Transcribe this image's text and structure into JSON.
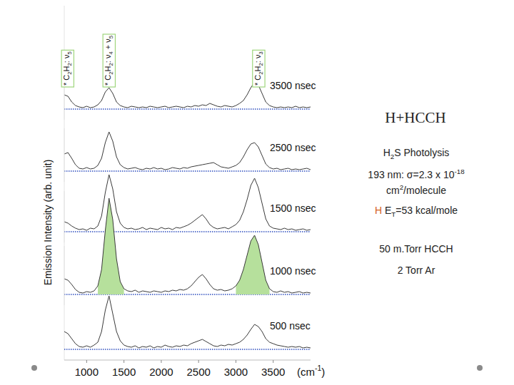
{
  "chart_data": [
    {
      "type": "line",
      "title": "3500 nsec",
      "xlim": [
        700,
        4000
      ],
      "ylim": [
        -15,
        145
      ],
      "tick_labels": false,
      "x": [
        700,
        750,
        800,
        850,
        900,
        950,
        1000,
        1050,
        1100,
        1150,
        1200,
        1250,
        1300,
        1350,
        1400,
        1450,
        1500,
        1550,
        1600,
        1650,
        1700,
        1750,
        1800,
        1850,
        1900,
        1950,
        2000,
        2050,
        2100,
        2150,
        2200,
        2250,
        2300,
        2350,
        2400,
        2450,
        2500,
        2550,
        2600,
        2650,
        2700,
        2750,
        2800,
        2850,
        2900,
        2950,
        3000,
        3050,
        3100,
        3150,
        3200,
        3250,
        3300,
        3350,
        3400,
        3450,
        3500,
        3550,
        3600,
        3650,
        3700,
        3750,
        3800,
        3850,
        3900,
        3950,
        4000
      ],
      "series": [
        {
          "color": "#3a3a3a",
          "values": [
            20,
            18,
            10,
            5,
            3,
            2,
            4,
            2,
            3,
            6,
            12,
            24,
            30,
            22,
            10,
            5,
            3,
            2,
            4,
            3,
            2,
            3,
            2,
            4,
            3,
            2,
            3,
            4,
            2,
            3,
            4,
            3,
            2,
            4,
            3,
            5,
            4,
            6,
            5,
            8,
            6,
            4,
            3,
            5,
            4,
            3,
            5,
            8,
            12,
            20,
            30,
            38,
            34,
            22,
            10,
            5,
            3,
            2,
            3,
            2,
            3,
            2,
            4,
            2,
            3,
            2,
            3
          ]
        }
      ]
    },
    {
      "type": "line",
      "title": "2500 nsec",
      "xlim": [
        700,
        4000
      ],
      "ylim": [
        -15,
        145
      ],
      "tick_labels": false,
      "x": [
        700,
        750,
        800,
        850,
        900,
        950,
        1000,
        1050,
        1100,
        1150,
        1200,
        1250,
        1300,
        1350,
        1400,
        1450,
        1500,
        1550,
        1600,
        1650,
        1700,
        1750,
        1800,
        1850,
        1900,
        1950,
        2000,
        2050,
        2100,
        2150,
        2200,
        2250,
        2300,
        2350,
        2400,
        2450,
        2500,
        2550,
        2600,
        2650,
        2700,
        2750,
        2800,
        2850,
        2900,
        2950,
        3000,
        3050,
        3100,
        3150,
        3200,
        3250,
        3300,
        3350,
        3400,
        3450,
        3500,
        3550,
        3600,
        3650,
        3700,
        3750,
        3800,
        3850,
        3900,
        3950,
        4000
      ],
      "series": [
        {
          "color": "#3a3a3a",
          "values": [
            24,
            26,
            18,
            9,
            4,
            3,
            5,
            3,
            4,
            8,
            18,
            40,
            55,
            42,
            20,
            9,
            5,
            3,
            4,
            5,
            3,
            2,
            4,
            3,
            5,
            3,
            4,
            2,
            3,
            5,
            4,
            3,
            5,
            4,
            6,
            7,
            8,
            9,
            10,
            11,
            12,
            9,
            6,
            5,
            4,
            6,
            8,
            12,
            20,
            30,
            38,
            40,
            34,
            22,
            10,
            5,
            3,
            4,
            2,
            3,
            4,
            2,
            3,
            2,
            3,
            4,
            2
          ]
        }
      ]
    },
    {
      "type": "line",
      "title": "1500 nsec",
      "xlim": [
        700,
        4000
      ],
      "ylim": [
        -15,
        145
      ],
      "tick_labels": false,
      "x": [
        700,
        750,
        800,
        850,
        900,
        950,
        1000,
        1050,
        1100,
        1150,
        1200,
        1250,
        1300,
        1350,
        1400,
        1450,
        1500,
        1550,
        1600,
        1650,
        1700,
        1750,
        1800,
        1850,
        1900,
        1950,
        2000,
        2050,
        2100,
        2150,
        2200,
        2250,
        2300,
        2350,
        2400,
        2450,
        2500,
        2550,
        2600,
        2650,
        2700,
        2750,
        2800,
        2850,
        2900,
        2950,
        3000,
        3050,
        3100,
        3150,
        3200,
        3250,
        3300,
        3350,
        3400,
        3450,
        3500,
        3550,
        3600,
        3650,
        3700,
        3750,
        3800,
        3850,
        3900,
        3950,
        4000
      ],
      "series": [
        {
          "color": "#3a3a3a",
          "values": [
            14,
            12,
            8,
            5,
            3,
            4,
            2,
            5,
            4,
            8,
            22,
            55,
            80,
            60,
            28,
            12,
            6,
            4,
            5,
            3,
            4,
            6,
            3,
            5,
            4,
            3,
            6,
            4,
            5,
            3,
            6,
            5,
            7,
            9,
            12,
            16,
            20,
            24,
            18,
            10,
            6,
            4,
            5,
            6,
            4,
            7,
            10,
            16,
            28,
            45,
            65,
            75,
            62,
            40,
            18,
            8,
            5,
            4,
            3,
            5,
            3,
            4,
            2,
            3,
            4,
            2,
            3
          ]
        }
      ]
    },
    {
      "type": "line",
      "title": "1000 nsec",
      "xlim": [
        700,
        4000
      ],
      "ylim": [
        -15,
        145
      ],
      "tick_labels": false,
      "x": [
        700,
        750,
        800,
        850,
        900,
        950,
        1000,
        1050,
        1100,
        1150,
        1200,
        1250,
        1300,
        1350,
        1400,
        1450,
        1500,
        1550,
        1600,
        1650,
        1700,
        1750,
        1800,
        1850,
        1900,
        1950,
        2000,
        2050,
        2100,
        2150,
        2200,
        2250,
        2300,
        2350,
        2400,
        2450,
        2500,
        2550,
        2600,
        2650,
        2700,
        2750,
        2800,
        2850,
        2900,
        2950,
        3000,
        3050,
        3100,
        3150,
        3200,
        3250,
        3300,
        3350,
        3400,
        3450,
        3500,
        3550,
        3600,
        3650,
        3700,
        3750,
        3800,
        3850,
        3900,
        3950,
        4000
      ],
      "series": [
        {
          "type": "area",
          "color": "#b6e09c",
          "values": [
            null,
            null,
            null,
            null,
            null,
            null,
            null,
            null,
            null,
            12,
            35,
            90,
            135,
            105,
            50,
            18,
            8,
            null,
            null,
            null,
            null,
            null,
            null,
            null,
            null,
            null,
            null,
            null,
            null,
            null,
            null,
            null,
            null,
            null,
            null,
            null,
            null,
            null,
            null,
            null,
            null,
            null,
            null,
            null,
            null,
            null,
            12,
            20,
            35,
            55,
            75,
            83,
            70,
            45,
            20,
            8,
            null,
            null,
            null,
            null,
            null,
            null,
            null,
            null,
            null,
            null,
            null
          ]
        },
        {
          "color": "#3a3a3a",
          "values": [
            22,
            20,
            14,
            7,
            3,
            2,
            4,
            3,
            5,
            12,
            35,
            90,
            135,
            105,
            50,
            18,
            8,
            5,
            4,
            6,
            3,
            5,
            4,
            3,
            5,
            4,
            3,
            5,
            4,
            6,
            5,
            7,
            6,
            8,
            12,
            18,
            24,
            28,
            22,
            14,
            8,
            6,
            7,
            5,
            6,
            8,
            12,
            20,
            35,
            55,
            75,
            83,
            70,
            45,
            20,
            8,
            4,
            3,
            5,
            3,
            4,
            2,
            3,
            4,
            2,
            3,
            2
          ]
        }
      ]
    },
    {
      "type": "line",
      "title": "500 nsec",
      "xlim": [
        700,
        4000
      ],
      "ylim": [
        -15,
        145
      ],
      "tick_labels": "x",
      "xticks": [
        1000,
        1500,
        2000,
        2500,
        3000,
        3500
      ],
      "x": [
        700,
        750,
        800,
        850,
        900,
        950,
        1000,
        1050,
        1100,
        1150,
        1200,
        1250,
        1300,
        1350,
        1400,
        1450,
        1500,
        1550,
        1600,
        1650,
        1700,
        1750,
        1800,
        1850,
        1900,
        1950,
        2000,
        2050,
        2100,
        2150,
        2200,
        2250,
        2300,
        2350,
        2400,
        2450,
        2500,
        2550,
        2600,
        2650,
        2700,
        2750,
        2800,
        2850,
        2900,
        2950,
        3000,
        3050,
        3100,
        3150,
        3200,
        3250,
        3300,
        3350,
        3400,
        3450,
        3500,
        3550,
        3600,
        3650,
        3700,
        3750,
        3800,
        3850,
        3900,
        3950,
        4000
      ],
      "series": [
        {
          "color": "#3a3a3a",
          "values": [
            25,
            22,
            15,
            8,
            4,
            3,
            5,
            3,
            6,
            10,
            25,
            55,
            75,
            50,
            25,
            12,
            6,
            4,
            3,
            5,
            2,
            4,
            3,
            5,
            2,
            4,
            3,
            6,
            4,
            3,
            5,
            4,
            6,
            5,
            8,
            10,
            12,
            14,
            11,
            8,
            5,
            4,
            6,
            5,
            7,
            6,
            8,
            10,
            14,
            20,
            28,
            35,
            32,
            25,
            15,
            10,
            8,
            6,
            5,
            4,
            3,
            4,
            3,
            4,
            2,
            3,
            2
          ]
        }
      ]
    }
  ],
  "figure": {
    "ylabel": "Emission Intensity (arb. unit)",
    "xlabel": [
      {
        "t": "(cm"
      },
      {
        "sup": "-1"
      },
      {
        "t": ")"
      }
    ],
    "annotations": [
      {
        "x": 730,
        "text": [
          {
            "t": "* C"
          },
          {
            "sub": "2"
          },
          {
            "t": "H"
          },
          {
            "sub": "2"
          },
          {
            "t": ": ν"
          },
          {
            "sub": "5"
          }
        ]
      },
      {
        "x": 1285,
        "text": [
          {
            "t": "* C"
          },
          {
            "sub": "2"
          },
          {
            "t": "H"
          },
          {
            "sub": "2"
          },
          {
            "t": ": ν"
          },
          {
            "sub": "4"
          },
          {
            "t": " + ν"
          },
          {
            "sub": "5"
          }
        ]
      },
      {
        "x": 3290,
        "text": [
          {
            "t": "* C"
          },
          {
            "sub": "2"
          },
          {
            "t": "H"
          },
          {
            "sub": "2"
          },
          {
            "t": ": ν"
          },
          {
            "sub": "3"
          }
        ]
      }
    ],
    "title": "H+HCCH",
    "side_text": [
      [
        {
          "t": "H"
        },
        {
          "sub": "2"
        },
        {
          "t": "S Photolysis"
        }
      ],
      [
        {
          "t": "193 nm: σ=2.3 x 10"
        },
        {
          "sup": "-18"
        }
      ],
      [
        {
          "t": "cm"
        },
        {
          "sup": "2"
        },
        {
          "t": "/molecule"
        }
      ],
      [
        {
          "t": "H",
          "color": "#d4601c"
        },
        {
          "t": " E"
        },
        {
          "sub": "T"
        },
        {
          "t": "=53 kcal/mole"
        }
      ],
      [
        {
          "t": "50 m.Torr HCCH"
        }
      ],
      [
        {
          "t": "2 Torr Ar"
        }
      ]
    ]
  }
}
